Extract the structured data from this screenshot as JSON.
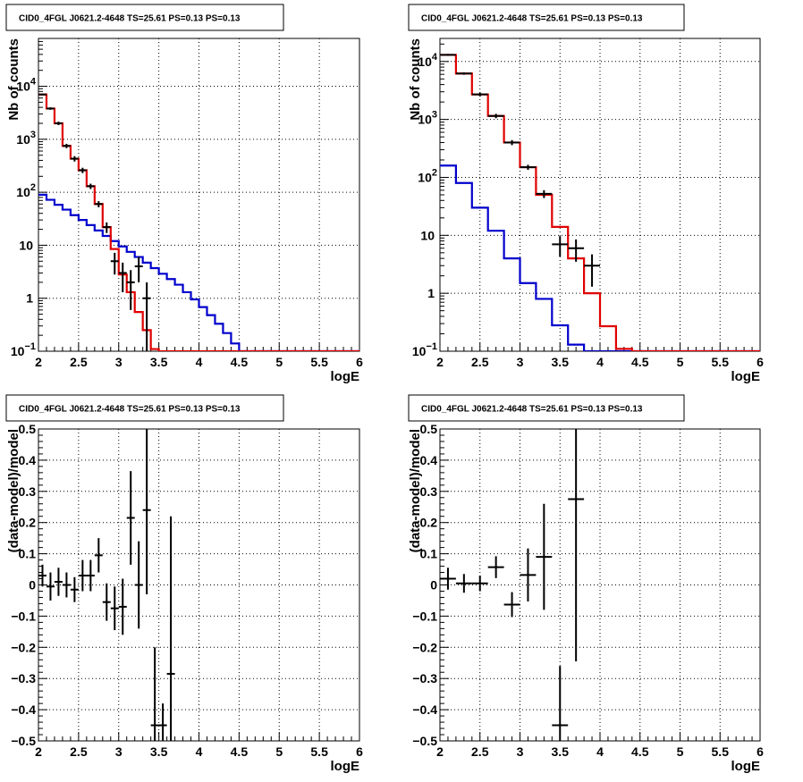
{
  "colors": {
    "data": "#000000",
    "model_total": "#e00000",
    "model_background": "#0000cc",
    "grid": "#000000"
  },
  "chart_data": [
    {
      "type": "line",
      "title": "CID0_4FGL J0621.2-4648 TS=25.61 PS=0.13 PS=0.13",
      "xlabel": "logE",
      "ylabel": "Nb of counts",
      "xlim": [
        2,
        6
      ],
      "ylim": [
        0.1,
        80000
      ],
      "yscale": "log",
      "grid": true,
      "x_ticks": [
        "2",
        "2.5",
        "3",
        "3.5",
        "4",
        "4.5",
        "5",
        "5.5",
        "6"
      ],
      "y_ticks": [
        {
          "value": 0.1,
          "label": "10",
          "exp": "−1"
        },
        {
          "value": 1,
          "label": "1",
          "exp": ""
        },
        {
          "value": 10,
          "label": "10",
          "exp": ""
        },
        {
          "value": 100,
          "label": "10",
          "exp": "2"
        },
        {
          "value": 1000,
          "label": "10",
          "exp": "3"
        },
        {
          "value": 10000,
          "label": "10",
          "exp": "4"
        }
      ],
      "bin_width": 0.1,
      "series": [
        {
          "values": [
            7000,
            3800,
            2000,
            750,
            430,
            260,
            130,
            60,
            22,
            8.5,
            2.8,
            1.3,
            0.55,
            0.25,
            0.11,
            0.1,
            0.1,
            0.1,
            0.1,
            0.1,
            0.1,
            0.1,
            0.1,
            0.1,
            0.1,
            0.1,
            0.1,
            0.1,
            0.1,
            0.1,
            0.1,
            0.1,
            0.1,
            0.1,
            0.1,
            0.1,
            0.1,
            0.1,
            0.1,
            0.1
          ]
        },
        {
          "values": [
            90,
            72,
            58,
            47,
            37,
            30,
            24,
            19,
            15,
            12,
            9.5,
            7.5,
            6,
            4.7,
            3.7,
            2.9,
            2.3,
            1.8,
            1.3,
            0.95,
            0.68,
            0.48,
            0.33,
            0.22,
            0.14,
            0.1,
            0.1,
            0.1,
            0.1,
            0.1,
            0.1,
            0.1,
            0.1,
            0.1,
            0.1,
            0.1,
            0.1,
            0.1,
            0.1,
            0.1
          ]
        }
      ],
      "points": [
        {
          "x": 2.05,
          "y": 7000,
          "yerr": 250
        },
        {
          "x": 2.15,
          "y": 3800,
          "yerr": 200
        },
        {
          "x": 2.25,
          "y": 2000,
          "yerr": 150
        },
        {
          "x": 2.35,
          "y": 750,
          "yerr": 70
        },
        {
          "x": 2.45,
          "y": 430,
          "yerr": 50
        },
        {
          "x": 2.55,
          "y": 260,
          "yerr": 30
        },
        {
          "x": 2.65,
          "y": 130,
          "yerr": 15
        },
        {
          "x": 2.75,
          "y": 60,
          "yerr": 8
        },
        {
          "x": 2.85,
          "y": 22,
          "yerr": 5
        },
        {
          "x": 2.95,
          "y": 5,
          "yerr": 2.2
        },
        {
          "x": 3.05,
          "y": 3,
          "yerr": 1.7
        },
        {
          "x": 3.15,
          "y": 2,
          "yerr": 1.4
        },
        {
          "x": 3.25,
          "y": 4,
          "yerr": 2
        },
        {
          "x": 3.35,
          "y": 1,
          "yerr": 1
        }
      ]
    },
    {
      "type": "line",
      "title": "CID0_4FGL J0621.2-4648 TS=25.61 PS=0.13 PS=0.13",
      "xlabel": "logE",
      "ylabel": "Nb of counts",
      "xlim": [
        2,
        6
      ],
      "ylim": [
        0.1,
        25000
      ],
      "yscale": "log",
      "grid": true,
      "x_ticks": [
        "2",
        "2.5",
        "3",
        "3.5",
        "4",
        "4.5",
        "5",
        "5.5",
        "6"
      ],
      "y_ticks": [
        {
          "value": 0.1,
          "label": "10",
          "exp": "−1"
        },
        {
          "value": 1,
          "label": "1",
          "exp": ""
        },
        {
          "value": 10,
          "label": "10",
          "exp": ""
        },
        {
          "value": 100,
          "label": "10",
          "exp": "2"
        },
        {
          "value": 1000,
          "label": "10",
          "exp": "3"
        },
        {
          "value": 10000,
          "label": "10",
          "exp": "4"
        }
      ],
      "bin_width": 0.2,
      "series": [
        {
          "values": [
            13000,
            6200,
            2700,
            1150,
            400,
            150,
            50,
            14,
            4,
            1,
            0.27,
            0.11,
            0.1,
            0.1,
            0.1,
            0.1,
            0.1,
            0.1,
            0.1,
            0.1
          ]
        },
        {
          "values": [
            160,
            80,
            30,
            12,
            4,
            1.5,
            0.8,
            0.28,
            0.13,
            0.1,
            0.1,
            0.1,
            0.1,
            0.1,
            0.1,
            0.1,
            0.1,
            0.1,
            0.1,
            0.1
          ]
        }
      ],
      "points": [
        {
          "x": 2.1,
          "y": 13000,
          "yerr": 500
        },
        {
          "x": 2.3,
          "y": 6200,
          "yerr": 300
        },
        {
          "x": 2.5,
          "y": 2700,
          "yerr": 200
        },
        {
          "x": 2.7,
          "y": 1150,
          "yerr": 100
        },
        {
          "x": 2.9,
          "y": 400,
          "yerr": 40
        },
        {
          "x": 3.1,
          "y": 150,
          "yerr": 15
        },
        {
          "x": 3.3,
          "y": 52,
          "yerr": 8
        },
        {
          "x": 3.5,
          "y": 7,
          "yerr": 2.7
        },
        {
          "x": 3.7,
          "y": 6,
          "yerr": 2.5
        },
        {
          "x": 3.9,
          "y": 3,
          "yerr": 1.7
        }
      ]
    },
    {
      "type": "scatter",
      "title": "CID0_4FGL J0621.2-4648 TS=25.61 PS=0.13 PS=0.13",
      "xlabel": "logE",
      "ylabel": "(data-model)/model",
      "xlim": [
        2,
        6
      ],
      "ylim": [
        -0.5,
        0.5
      ],
      "grid": true,
      "x_ticks": [
        "2",
        "2.5",
        "3",
        "3.5",
        "4",
        "4.5",
        "5",
        "5.5",
        "6"
      ],
      "y_ticks": [
        "−0.5",
        "−0.4",
        "−0.3",
        "−0.2",
        "−0.1",
        "0",
        "0.1",
        "0.2",
        "0.3",
        "0.4",
        "0.5"
      ],
      "bin_width": 0.1,
      "points": [
        {
          "x": 2.05,
          "y": 0.03,
          "yerr": 0.035
        },
        {
          "x": 2.15,
          "y": -0.005,
          "yerr": 0.045
        },
        {
          "x": 2.25,
          "y": 0.01,
          "yerr": 0.045
        },
        {
          "x": 2.35,
          "y": 0.0,
          "yerr": 0.04
        },
        {
          "x": 2.45,
          "y": -0.015,
          "yerr": 0.04
        },
        {
          "x": 2.55,
          "y": 0.03,
          "yerr": 0.05
        },
        {
          "x": 2.65,
          "y": 0.03,
          "yerr": 0.05
        },
        {
          "x": 2.75,
          "y": 0.095,
          "yerr": 0.055
        },
        {
          "x": 2.85,
          "y": -0.055,
          "yerr": 0.06
        },
        {
          "x": 2.95,
          "y": -0.075,
          "yerr": 0.07
        },
        {
          "x": 3.05,
          "y": -0.07,
          "yerr": 0.09
        },
        {
          "x": 3.15,
          "y": 0.215,
          "yerr": 0.15
        },
        {
          "x": 3.25,
          "y": 0.0,
          "yerr": 0.14
        },
        {
          "x": 3.35,
          "y": 0.24,
          "yerr": 0.27
        },
        {
          "x": 3.45,
          "y": -0.45,
          "yerr": 0.25
        },
        {
          "x": 3.55,
          "y": -0.45,
          "yerr": 0.07
        },
        {
          "x": 3.65,
          "y": -0.285,
          "yerr": 0.505
        }
      ]
    },
    {
      "type": "scatter",
      "title": "CID0_4FGL J0621.2-4648 TS=25.61 PS=0.13 PS=0.13",
      "xlabel": "logE",
      "ylabel": "(data-model)/model",
      "xlim": [
        2,
        6
      ],
      "ylim": [
        -0.5,
        0.5
      ],
      "grid": true,
      "x_ticks": [
        "2",
        "2.5",
        "3",
        "3.5",
        "4",
        "4.5",
        "5",
        "5.5",
        "6"
      ],
      "y_ticks": [
        "−0.5",
        "−0.4",
        "−0.3",
        "−0.2",
        "−0.1",
        "0",
        "0.1",
        "0.2",
        "0.3",
        "0.4",
        "0.5"
      ],
      "bin_width": 0.2,
      "points": [
        {
          "x": 2.1,
          "y": 0.02,
          "yerr": 0.035
        },
        {
          "x": 2.3,
          "y": 0.005,
          "yerr": 0.03
        },
        {
          "x": 2.5,
          "y": 0.005,
          "yerr": 0.025
        },
        {
          "x": 2.7,
          "y": 0.057,
          "yerr": 0.035
        },
        {
          "x": 2.9,
          "y": -0.063,
          "yerr": 0.04
        },
        {
          "x": 3.1,
          "y": 0.032,
          "yerr": 0.085
        },
        {
          "x": 3.3,
          "y": 0.09,
          "yerr": 0.17
        },
        {
          "x": 3.5,
          "y": -0.45,
          "yerr": 0.19
        },
        {
          "x": 3.7,
          "y": 0.275,
          "yerr": 0.52
        }
      ]
    }
  ]
}
